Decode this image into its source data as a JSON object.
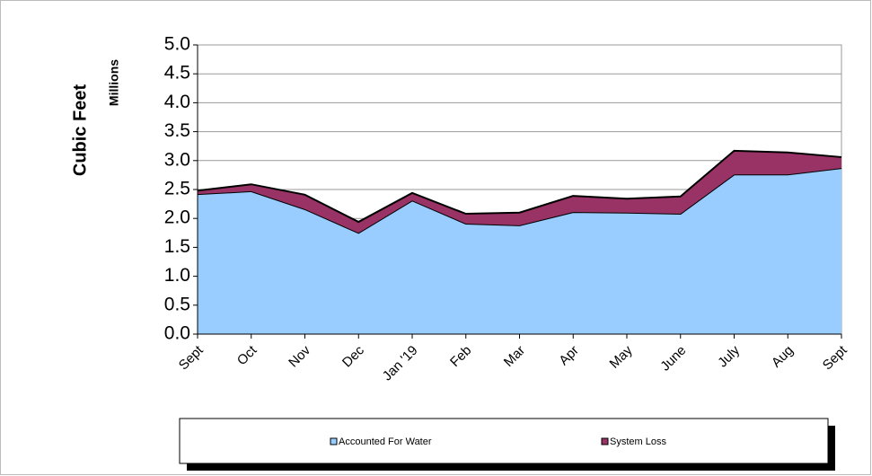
{
  "chart_data": {
    "type": "stacked_area",
    "y_label": "Cubic Feet",
    "y_unit_label": "Millions",
    "categories": [
      "Sept",
      "Oct",
      "Nov",
      "Dec",
      "Jan '19",
      "Feb",
      "Mar",
      "Apr",
      "May",
      "June",
      "July",
      "Aug",
      "Sept"
    ],
    "series": [
      {
        "name": "Accounted For Water",
        "color": "#99ccff",
        "values": [
          2.42,
          2.47,
          2.16,
          1.75,
          2.31,
          1.91,
          1.88,
          2.11,
          2.1,
          2.08,
          2.76,
          2.76,
          2.87
        ]
      },
      {
        "name": "System Loss",
        "color": "#993366",
        "values": [
          0.06,
          0.12,
          0.25,
          0.19,
          0.13,
          0.17,
          0.22,
          0.28,
          0.24,
          0.3,
          0.41,
          0.38,
          0.19
        ]
      }
    ],
    "ylim": [
      0,
      5
    ],
    "yticks": [
      {
        "value": 0,
        "label": "0.0"
      },
      0.5,
      {
        "value": 1,
        "label": "1.0"
      },
      1.5,
      {
        "value": 2,
        "label": "2.0"
      },
      2.5,
      {
        "value": 3,
        "label": "3.0"
      },
      3.5,
      {
        "value": 4,
        "label": "4.0"
      },
      4.5,
      {
        "value": 5,
        "label": "5.0"
      }
    ],
    "grid": true,
    "legend": "bottom"
  }
}
